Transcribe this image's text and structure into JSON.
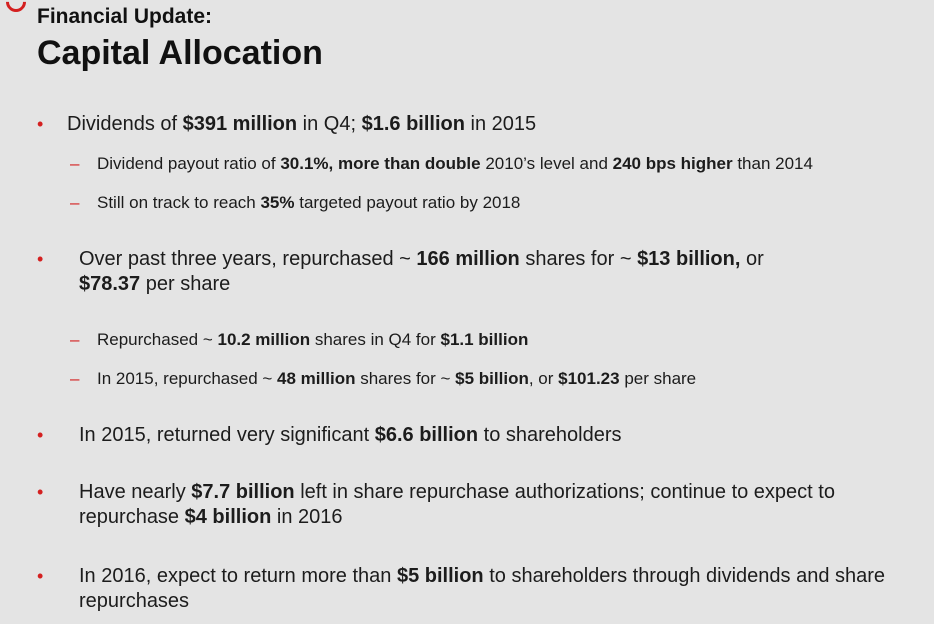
{
  "header": {
    "subtitle": "Financial Update:",
    "title": "Capital Allocation"
  },
  "colors": {
    "accent": "#d42020",
    "background": "#e4e4e4",
    "text": "#1c1c1c"
  },
  "bullets": [
    {
      "parts": [
        "Dividends of ",
        "$391 million",
        " in Q4; ",
        "$1.6 billion",
        " in 2015"
      ],
      "subs": [
        {
          "parts": [
            "Dividend payout ratio of ",
            "30.1%, more than double",
            " 2010’s level and ",
            "240 bps higher",
            " than 2014"
          ]
        },
        {
          "parts": [
            "Still on track to reach ",
            "35%",
            " targeted payout ratio by 2018"
          ]
        }
      ]
    },
    {
      "parts": [
        "Over past three years, repurchased  ~ ",
        "166 million",
        " shares for ~ ",
        "$13 billion,",
        " or ",
        "$78.37",
        " per share"
      ],
      "subs": [
        {
          "parts": [
            "Repurchased ~ ",
            "10.2 million",
            " shares in Q4 for ",
            "$1.1 billion",
            ""
          ]
        },
        {
          "parts": [
            "In 2015, repurchased ~ ",
            "48 million",
            " shares for ~ ",
            "$5 billion",
            ", or ",
            "$101.23",
            " per share"
          ]
        }
      ]
    },
    {
      "parts": [
        "In 2015, returned very significant ",
        "$6.6 billion",
        " to shareholders"
      ]
    },
    {
      "parts": [
        "Have nearly ",
        "$7.7 billion",
        " left in share repurchase authorizations; continue to expect to repurchase ",
        "$4 billion",
        " in 2016"
      ]
    },
    {
      "parts": [
        "In 2016, expect to return more than ",
        "$5 billion",
        " to shareholders through dividends and share repurchases"
      ]
    }
  ]
}
